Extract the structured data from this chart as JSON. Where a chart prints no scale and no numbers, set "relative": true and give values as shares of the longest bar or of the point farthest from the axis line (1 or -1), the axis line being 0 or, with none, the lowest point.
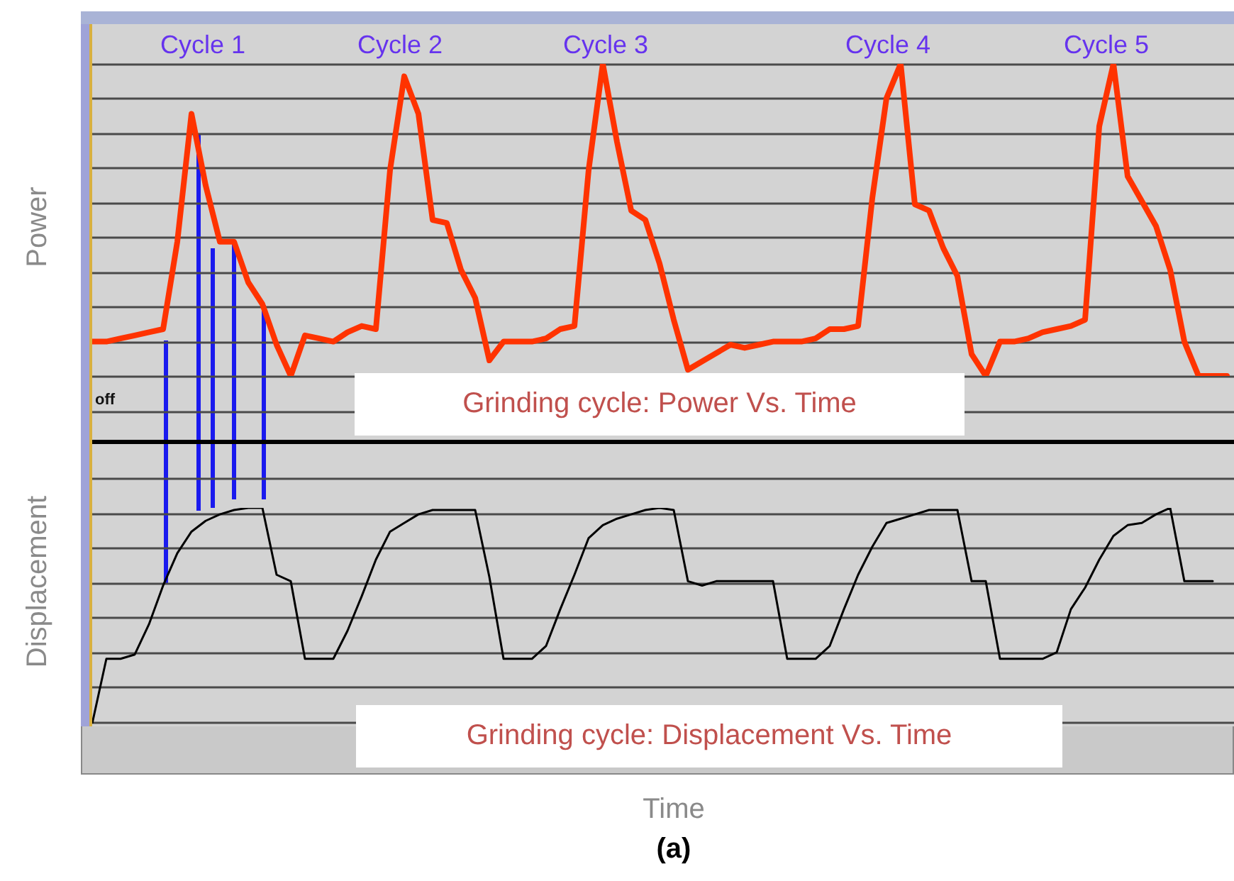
{
  "chart_data": [
    {
      "type": "line",
      "relative": true,
      "ylabel": "Power",
      "grid": true,
      "categories": [
        null,
        null,
        null,
        null,
        null,
        null,
        null,
        null,
        null,
        null,
        null,
        null,
        null,
        null,
        null,
        null,
        null,
        null,
        null,
        null,
        null,
        null,
        null,
        null,
        null,
        null,
        null,
        null,
        null,
        null,
        null,
        null,
        null,
        null,
        null,
        null,
        null,
        null,
        null,
        null,
        null,
        null,
        null,
        null,
        null,
        null,
        null,
        null,
        null,
        null,
        null,
        null,
        null,
        null,
        null,
        null,
        null,
        null,
        null,
        null,
        null,
        null,
        null,
        null,
        null,
        null,
        null,
        null,
        null,
        null,
        null,
        null,
        null,
        null,
        null,
        null,
        null,
        null,
        null,
        null,
        null
      ],
      "series": [
        {
          "color": "#ff3300",
          "values": [
            0.11,
            0.11,
            0.12,
            0.13,
            0.14,
            0.15,
            0.43,
            0.84,
            0.61,
            0.43,
            0.43,
            0.3,
            0.23,
            0.1,
            0,
            0.13,
            0.12,
            0.11,
            0.14,
            0.16,
            0.15,
            0.66,
            0.96,
            0.84,
            0.5,
            0.49,
            0.34,
            0.25,
            0.05,
            0.11,
            0.11,
            0.11,
            0.12,
            0.15,
            0.16,
            0.66,
            1,
            0.75,
            0.53,
            0.5,
            0.36,
            0.18,
            0.02,
            null,
            null,
            0.1,
            0.09,
            0.1,
            0.11,
            0.11,
            0.11,
            0.12,
            0.15,
            0.15,
            0.16,
            0.57,
            0.89,
            1,
            0.55,
            0.53,
            0.41,
            0.32,
            0.07,
            0,
            0.11,
            0.11,
            0.12,
            0.14,
            0.15,
            0.16,
            0.18,
            0.8,
            1,
            0.64,
            0.56,
            0.48,
            0.34,
            0.11,
            0,
            0,
            0
          ]
        }
      ],
      "annotations": [
        "Cycle 1",
        "Cycle 2",
        "Cycle 3",
        "Cycle 4",
        "Cycle 5",
        "off",
        "Grinding cycle: Power Vs. Time"
      ]
    },
    {
      "type": "line",
      "relative": true,
      "ylabel": "Displacement",
      "xlabel": "Time",
      "grid": true,
      "categories": [
        null,
        null,
        null,
        null,
        null,
        null,
        null,
        null,
        null,
        null,
        null,
        null,
        null,
        null,
        null,
        null,
        null,
        null,
        null,
        null,
        null,
        null,
        null,
        null,
        null,
        null,
        null,
        null,
        null,
        null,
        null,
        null,
        null,
        null,
        null,
        null,
        null,
        null,
        null,
        null,
        null,
        null,
        null,
        null,
        null,
        null,
        null,
        null,
        null,
        null,
        null,
        null,
        null,
        null,
        null,
        null,
        null,
        null,
        null,
        null,
        null,
        null,
        null,
        null,
        null,
        null,
        null,
        null,
        null,
        null,
        null,
        null,
        null,
        null,
        null,
        null,
        null,
        null,
        null,
        null,
        null
      ],
      "series": [
        {
          "color": "#000000",
          "values": [
            0,
            0.3,
            0.3,
            0.32,
            0.46,
            0.64,
            0.79,
            0.89,
            0.94,
            0.97,
            0.99,
            1,
            1,
            0.69,
            0.66,
            0.3,
            0.3,
            0.3,
            0.43,
            0.59,
            0.76,
            0.89,
            0.93,
            0.97,
            0.99,
            0.99,
            0.99,
            0.99,
            0.68,
            0.3,
            0.3,
            0.3,
            0.36,
            0.53,
            0.69,
            0.86,
            0.92,
            0.95,
            0.97,
            0.99,
            1,
            0.99,
            0.66,
            0.64,
            0.66,
            0.66,
            0.66,
            0.66,
            0.66,
            0.3,
            0.3,
            0.3,
            0.36,
            0.53,
            0.69,
            0.82,
            0.93,
            0.95,
            0.97,
            0.99,
            0.99,
            0.99,
            0.66,
            0.66,
            0.3,
            0.3,
            0.3,
            0.3,
            0.33,
            0.53,
            0.63,
            0.76,
            0.87,
            0.92,
            0.93,
            0.97,
            1,
            0.66,
            0.66,
            0.66,
            null
          ]
        }
      ],
      "annotations": [
        "Grinding cycle: Displacement Vs. Time",
        "(a)"
      ]
    }
  ]
}
